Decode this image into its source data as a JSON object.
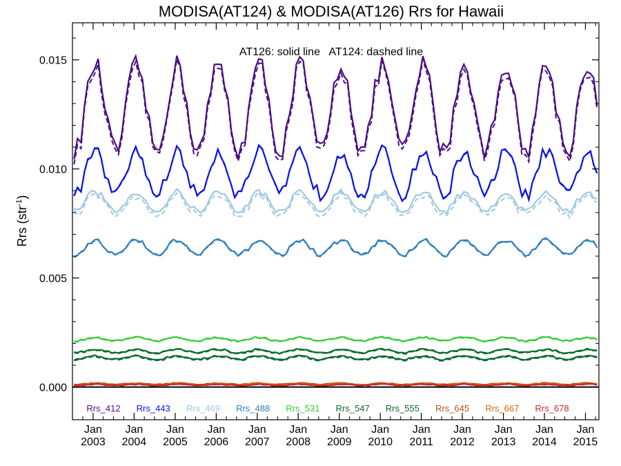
{
  "chart_data": {
    "type": "line",
    "title": "MODISA(AT124) & MODISA(AT126)  Rrs for Hawaii",
    "annotation": "AT126: solid line   AT124: dashed line",
    "ylabel_base": "Rrs (str",
    "ylabel_sup": "-1",
    "ylabel_end": ")",
    "yticks": [
      "0.000",
      "0.005",
      "0.010",
      "0.015"
    ],
    "ytick_values": [
      0.0,
      0.005,
      0.01,
      0.015
    ],
    "ylim": [
      -0.0015,
      0.0167
    ],
    "xlim": [
      "2002-07-01",
      "2015-05-01"
    ],
    "xticks": [
      {
        "month": "Jan",
        "year": "2003",
        "date": "2003-01-01"
      },
      {
        "month": "Jan",
        "year": "2004",
        "date": "2004-01-01"
      },
      {
        "month": "Jan",
        "year": "2005",
        "date": "2005-01-01"
      },
      {
        "month": "Jan",
        "year": "2006",
        "date": "2006-01-01"
      },
      {
        "month": "Jan",
        "year": "2007",
        "date": "2007-01-01"
      },
      {
        "month": "Jan",
        "year": "2008",
        "date": "2008-01-01"
      },
      {
        "month": "Jan",
        "year": "2009",
        "date": "2009-01-01"
      },
      {
        "month": "Jan",
        "year": "2010",
        "date": "2010-01-01"
      },
      {
        "month": "Jan",
        "year": "2011",
        "date": "2011-01-01"
      },
      {
        "month": "Jan",
        "year": "2012",
        "date": "2012-01-01"
      },
      {
        "month": "Jan",
        "year": "2013",
        "date": "2013-01-01"
      },
      {
        "month": "Jan",
        "year": "2014",
        "date": "2014-01-01"
      },
      {
        "month": "Jan",
        "year": "2015",
        "date": "2015-01-01"
      }
    ],
    "grid": false,
    "legend_position": "bottom inside plot",
    "series": [
      {
        "name": "Rrs_412",
        "color": "#4b0f82",
        "base": 0.0128,
        "amp": 0.002,
        "noise": 0.00045,
        "dash_offset": 0.00025
      },
      {
        "name": "Rrs_443",
        "color": "#0a14e6",
        "base": 0.0098,
        "amp": 0.001,
        "noise": 0.0003,
        "dash_offset": 3e-05
      },
      {
        "name": "Rrs_469",
        "color": "#9ecae1",
        "base": 0.0085,
        "amp": 0.00045,
        "noise": 0.00015,
        "dash_offset": 0.0002
      },
      {
        "name": "Rrs_488",
        "color": "#3182bd",
        "base": 0.0064,
        "amp": 0.00035,
        "noise": 0.0001,
        "dash_offset": 3e-05
      },
      {
        "name": "Rrs_531",
        "color": "#32cd32",
        "base": 0.0022,
        "amp": 8e-05,
        "noise": 4e-05,
        "dash_offset": 2e-05
      },
      {
        "name": "Rrs_547",
        "color": "#0b6b2e",
        "base": 0.00165,
        "amp": 8e-05,
        "noise": 4e-05,
        "dash_offset": 3e-05
      },
      {
        "name": "Rrs_555",
        "color": "#0b6b2e",
        "base": 0.00135,
        "amp": 8e-05,
        "noise": 4e-05,
        "dash_offset": 4e-05
      },
      {
        "name": "Rrs_645",
        "color": "#b5501e",
        "base": 0.00015,
        "amp": 3e-05,
        "noise": 2e-05,
        "dash_offset": 1e-05
      },
      {
        "name": "Rrs_667",
        "color": "#e0640a",
        "base": 0.00012,
        "amp": 3e-05,
        "noise": 2e-05,
        "dash_offset": 1e-05
      },
      {
        "name": "Rrs_678",
        "color": "#c8282d",
        "base": 0.0001,
        "amp": 3e-05,
        "noise": 2e-05,
        "dash_offset": 1e-05
      }
    ]
  }
}
